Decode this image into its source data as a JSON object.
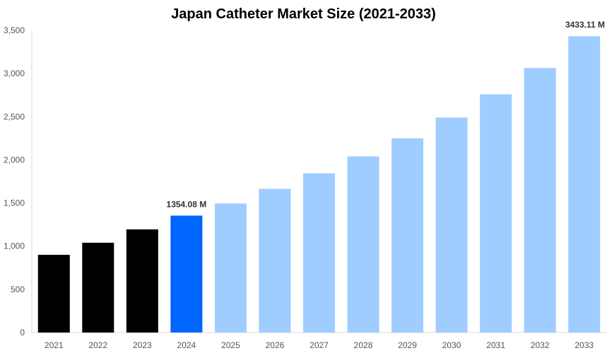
{
  "chart_data": {
    "type": "bar",
    "title": "Japan Catheter Market Size (2021-2033)",
    "xlabel": "",
    "ylabel": "",
    "categories": [
      "2021",
      "2022",
      "2023",
      "2024",
      "2025",
      "2026",
      "2027",
      "2028",
      "2029",
      "2030",
      "2031",
      "2032",
      "2033"
    ],
    "values": [
      900,
      1040,
      1195,
      1354.08,
      1495,
      1665,
      1845,
      2040,
      2250,
      2490,
      2760,
      3065,
      3433.11
    ],
    "ylim": [
      0,
      3500
    ],
    "yticks": [
      0,
      500,
      1000,
      1500,
      2000,
      2500,
      3000,
      3500
    ],
    "ytick_labels": [
      "0",
      "500",
      "1,000",
      "1,500",
      "2,000",
      "2,500",
      "3,000",
      "3,500"
    ],
    "data_labels": [
      {
        "index": 3,
        "text": "1354.08 M"
      },
      {
        "index": 12,
        "text": "3433.11 M"
      }
    ],
    "bar_colors": [
      "#000000",
      "#000000",
      "#000000",
      "#0066ff",
      "#a0cdff",
      "#a0cdff",
      "#a0cdff",
      "#a0cdff",
      "#a0cdff",
      "#a0cdff",
      "#a0cdff",
      "#a0cdff",
      "#a0cdff"
    ],
    "grid": false,
    "legend": "none"
  }
}
